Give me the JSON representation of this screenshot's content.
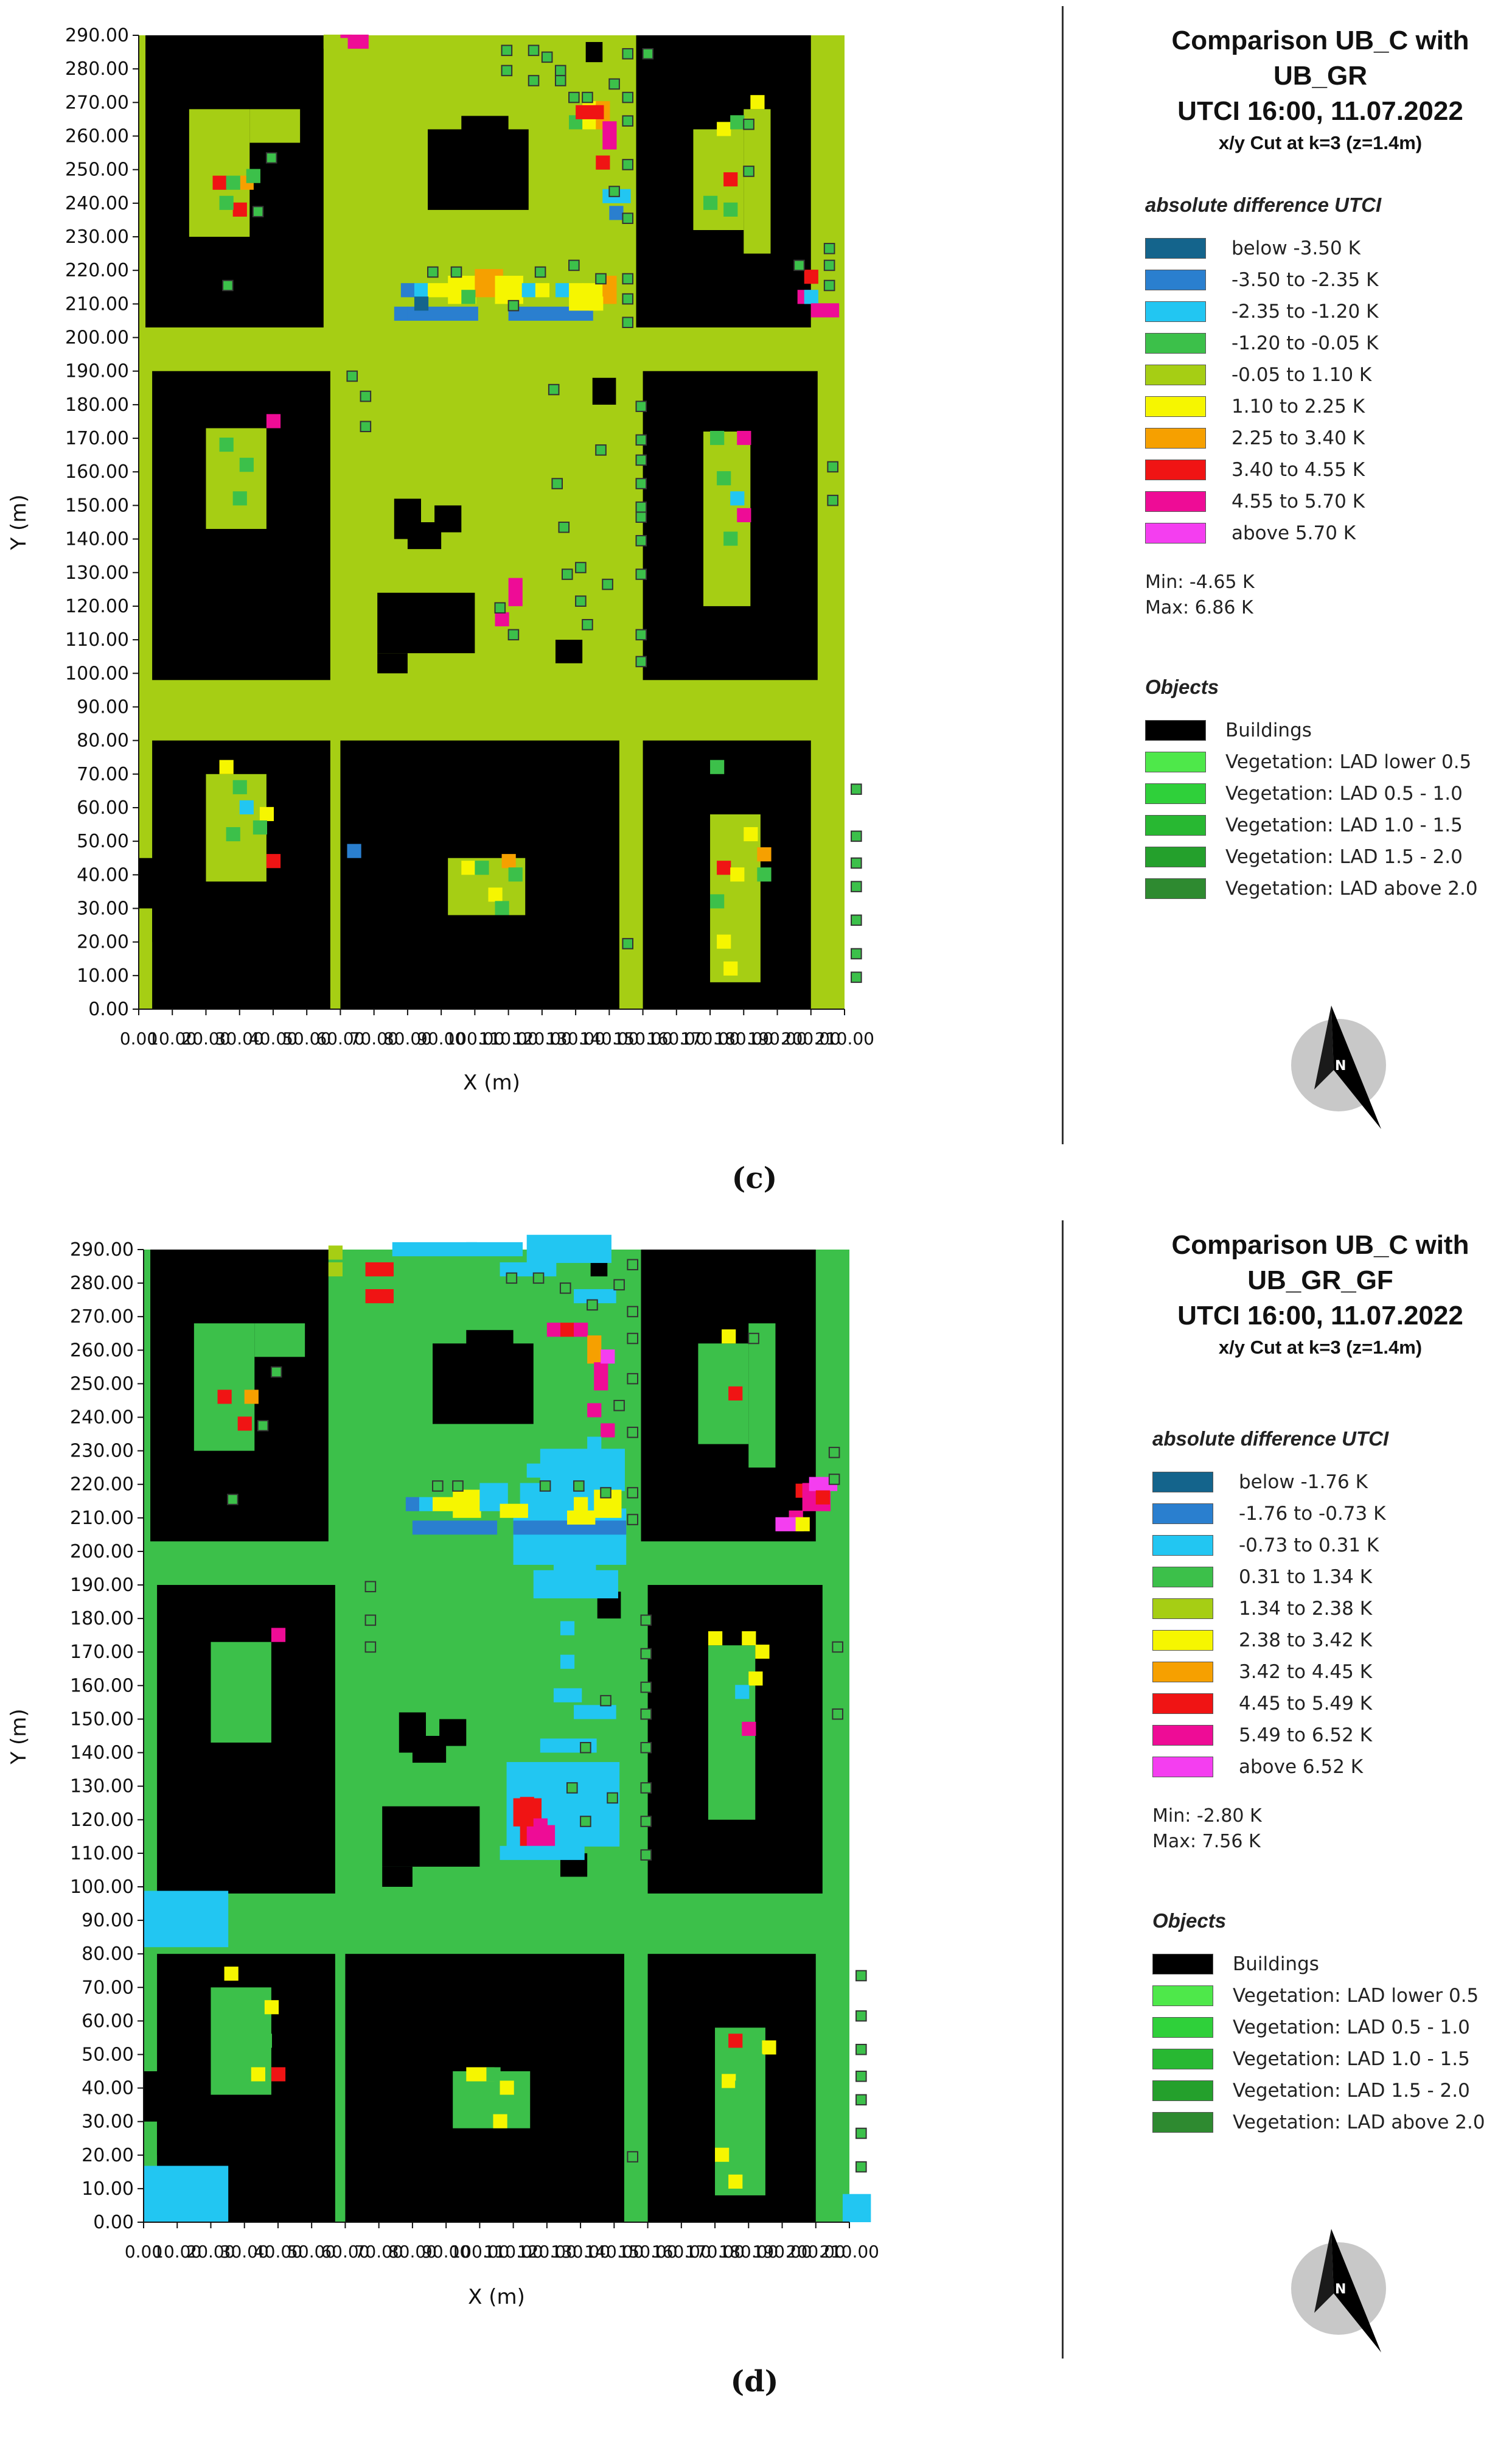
{
  "panels": [
    {
      "id": "c",
      "caption": "(c)",
      "title_lines": [
        "Comparison UB_C with",
        "UB_GR",
        "UTCI 16:00, 11.07.2022"
      ],
      "cut": "x/y Cut at k=3 (z=1.4m)",
      "diff_heading": "absolute difference UTCI",
      "min": "Min: -4.65 K",
      "max": "Max: 6.86 K",
      "base_color": "#a6ce14",
      "legend": [
        {
          "label": "below -3.50 K",
          "color": "#14648c"
        },
        {
          "label": "-3.50 to -2.35 K",
          "color": "#2a7fcf"
        },
        {
          "label": "-2.35 to -1.20 K",
          "color": "#22c6f2"
        },
        {
          "label": "-1.20 to -0.05 K",
          "color": "#3cc04a"
        },
        {
          "label": "-0.05 to 1.10 K",
          "color": "#a6ce14"
        },
        {
          "label": "1.10 to 2.25 K",
          "color": "#f6f600"
        },
        {
          "label": "2.25 to 3.40 K",
          "color": "#f6a000"
        },
        {
          "label": "3.40 to 4.55 K",
          "color": "#f01414"
        },
        {
          "label": "4.55 to 5.70 K",
          "color": "#ee0c96"
        },
        {
          "label": "above 5.70 K",
          "color": "#f43ef0"
        }
      ]
    },
    {
      "id": "d",
      "caption": "(d)",
      "title_lines": [
        "Comparison UB_C with",
        "UB_GR_GF",
        "UTCI 16:00, 11.07.2022"
      ],
      "cut": "x/y Cut at k=3 (z=1.4m)",
      "diff_heading": "absolute difference UTCI",
      "min": "Min: -2.80 K",
      "max": "Max: 7.56 K",
      "base_color": "#3cc04a",
      "legend": [
        {
          "label": "below -1.76 K",
          "color": "#14648c"
        },
        {
          "label": "-1.76 to -0.73 K",
          "color": "#2a7fcf"
        },
        {
          "label": "-0.73 to 0.31 K",
          "color": "#22c6f2"
        },
        {
          "label": "0.31 to 1.34 K",
          "color": "#3cc04a"
        },
        {
          "label": "1.34 to 2.38 K",
          "color": "#a6ce14"
        },
        {
          "label": "2.38 to 3.42 K",
          "color": "#f6f600"
        },
        {
          "label": "3.42 to 4.45 K",
          "color": "#f6a000"
        },
        {
          "label": "4.45 to 5.49 K",
          "color": "#f01414"
        },
        {
          "label": "5.49 to 6.52 K",
          "color": "#ee0c96"
        },
        {
          "label": "above 6.52 K",
          "color": "#f43ef0"
        }
      ]
    }
  ],
  "objects": {
    "heading": "Objects",
    "items": [
      {
        "label": "Buildings",
        "color": "#000000"
      },
      {
        "label": "Vegetation: LAD lower 0.5",
        "color": "#4ee84a"
      },
      {
        "label": "Vegetation:  LAD 0.5 - 1.0",
        "color": "#2fd03a"
      },
      {
        "label": "Vegetation:  LAD 1.0 - 1.5",
        "color": "#28b832"
      },
      {
        "label": "Vegetation:  LAD 1.5 - 2.0",
        "color": "#24a02c"
      },
      {
        "label": "Vegetation:  LAD above 2.0",
        "color": "#2e8a30"
      }
    ]
  },
  "axes": {
    "y_label": "Y (m)",
    "x_label": "X (m)",
    "y_ticks": [
      "290.00",
      "280.00",
      "270.00",
      "260.00",
      "250.00",
      "240.00",
      "230.00",
      "220.00",
      "210.00",
      "200.00",
      "190.00",
      "180.00",
      "170.00",
      "160.00",
      "150.00",
      "140.00",
      "130.00",
      "120.00",
      "110.00",
      "100.00",
      "90.00",
      "80.00",
      "70.00",
      "60.00",
      "50.00",
      "40.00",
      "30.00",
      "20.00",
      "10.00",
      "0.00"
    ],
    "x_tick_values": [
      0,
      10,
      20,
      30,
      40,
      50,
      60,
      70,
      80,
      90,
      100,
      110,
      120,
      130,
      140,
      150,
      160,
      170,
      180,
      190,
      200,
      210
    ]
  },
  "compass_letter": "N"
}
